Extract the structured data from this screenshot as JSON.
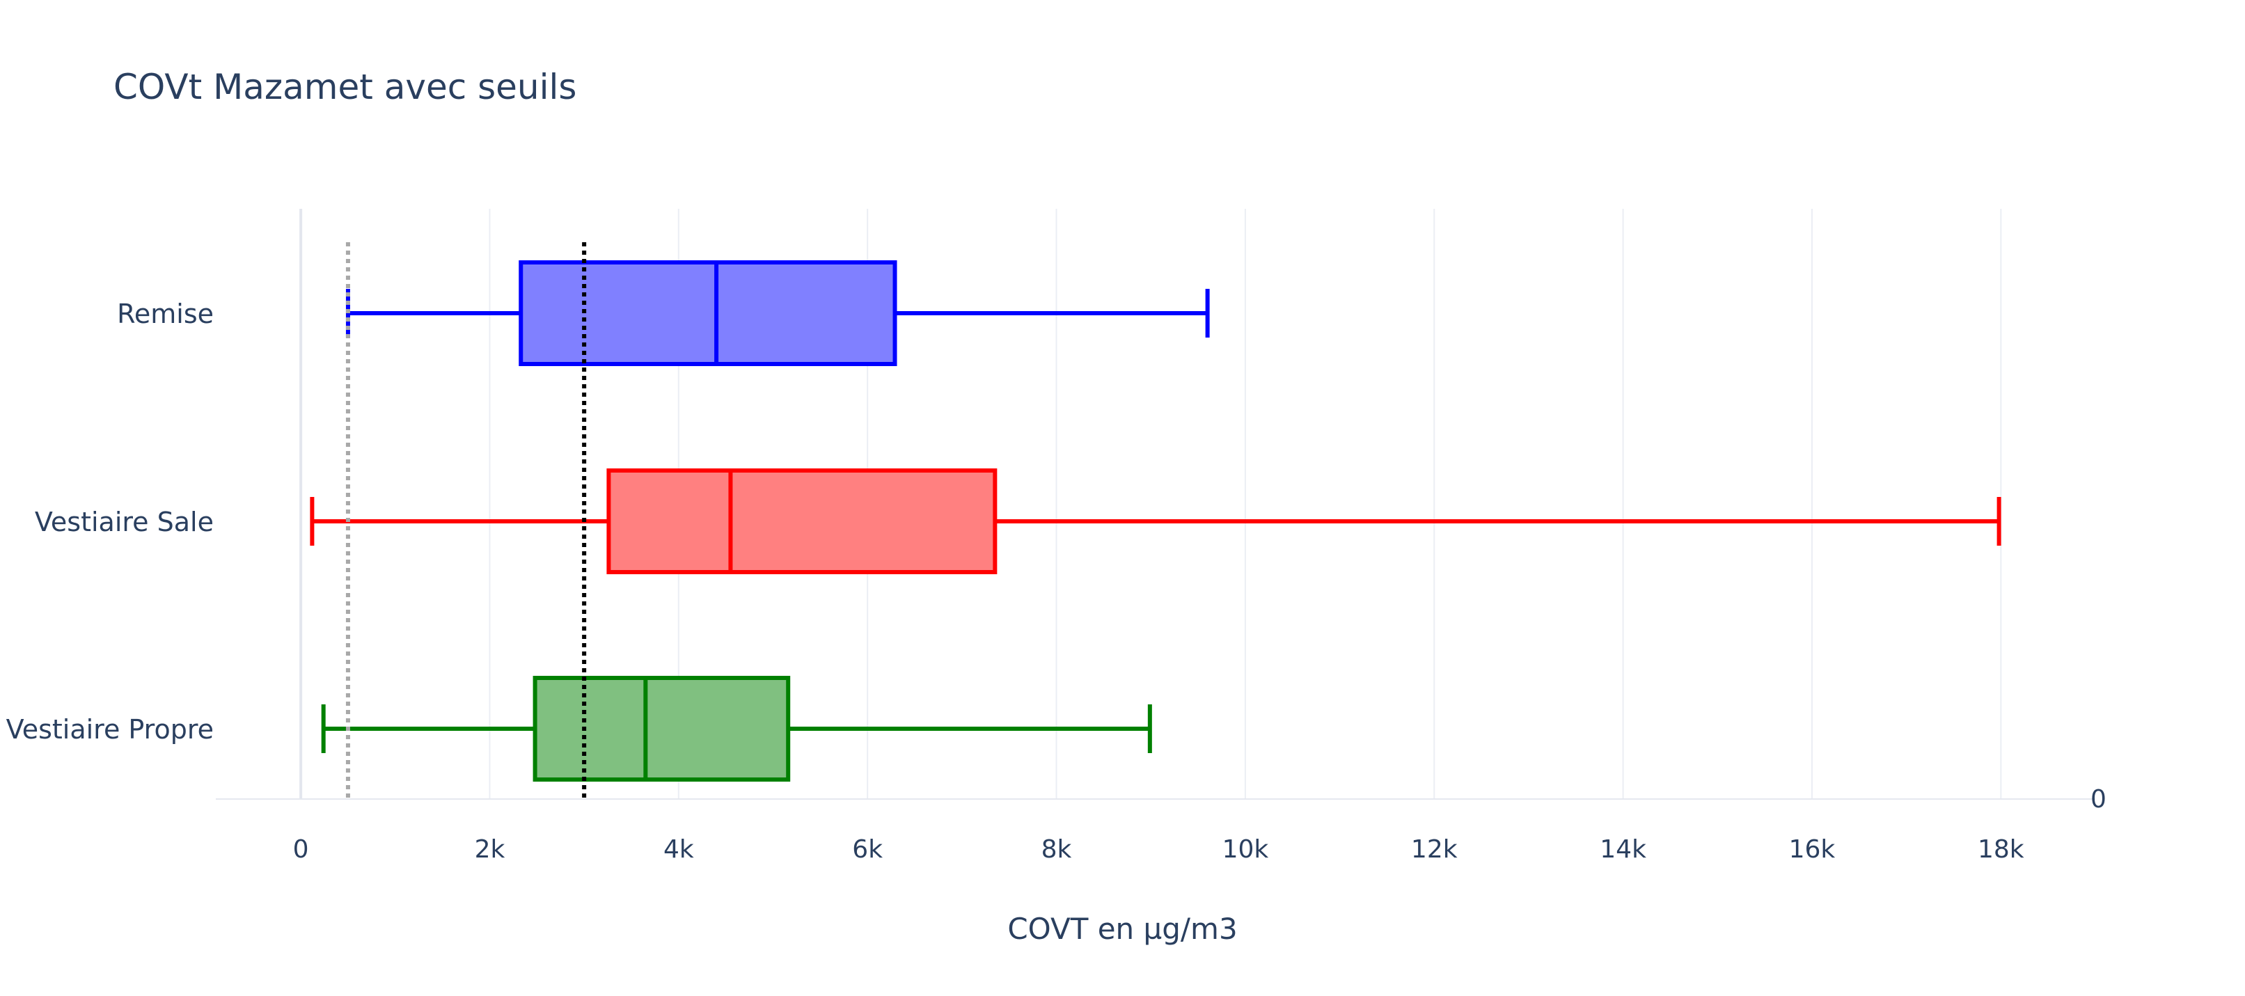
{
  "chart_data": {
    "type": "box",
    "title": "COVt Mazamet avec seuils",
    "xlabel": "COVT en µg/m3",
    "ylabel": "",
    "orientation": "horizontal",
    "xlim": [
      -900,
      19000
    ],
    "xticks": [
      0,
      2000,
      4000,
      6000,
      8000,
      10000,
      12000,
      14000,
      16000,
      18000
    ],
    "xtick_labels": [
      "0",
      "2k",
      "4k",
      "6k",
      "8k",
      "10k",
      "12k",
      "14k",
      "16k",
      "18k"
    ],
    "secondary_axis_label": "0",
    "grid": true,
    "series": [
      {
        "name": "Remise",
        "color": "#0000ff",
        "fill": "#8080ff",
        "min": 500,
        "q1": 2330,
        "median": 4400,
        "q3": 6290,
        "max": 9600
      },
      {
        "name": "Vestiaire Sale",
        "color": "#ff0000",
        "fill": "#ff8080",
        "min": 120,
        "q1": 3260,
        "median": 4550,
        "q3": 7350,
        "max": 17980
      },
      {
        "name": "Vestiaire Propre",
        "color": "#008000",
        "fill": "#80c080",
        "min": 240,
        "q1": 2480,
        "median": 3650,
        "q3": 5160,
        "max": 8990
      }
    ],
    "reference_lines": [
      {
        "value": 500,
        "color": "#a8a8a8",
        "style": "dotted"
      },
      {
        "value": 3000,
        "color": "#000000",
        "style": "dotted"
      }
    ]
  }
}
